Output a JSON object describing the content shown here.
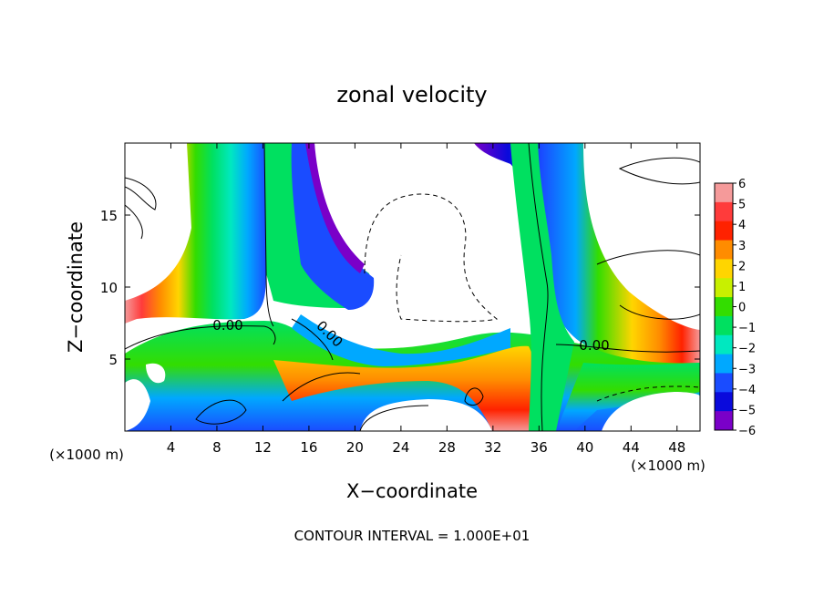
{
  "chart_data": {
    "type": "heatmap",
    "title": "zonal velocity",
    "xlabel": "X−coordinate",
    "ylabel": "Z−coordinate",
    "x_unit_left": "(×1000 m)",
    "x_unit_right": "(×1000 m)",
    "xlim": [
      0,
      50
    ],
    "ylim": [
      0,
      20
    ],
    "x_ticks": [
      4,
      8,
      12,
      16,
      20,
      24,
      28,
      32,
      36,
      40,
      44,
      48
    ],
    "y_ticks": [
      5,
      10,
      15
    ],
    "colorbar": {
      "ticks": [
        6,
        5,
        4,
        3,
        2,
        1,
        0,
        -1,
        -2,
        -3,
        -4,
        -5,
        -6
      ],
      "labels": [
        "6",
        "5",
        "4",
        "3",
        "2",
        "1",
        "0",
        "−1",
        "−2",
        "−3",
        "−4",
        "−5",
        "−6"
      ],
      "colors": [
        "#f59a9a",
        "#ff3b3b",
        "#ff2200",
        "#ff8c00",
        "#ffd500",
        "#c8f000",
        "#33dd00",
        "#00e060",
        "#00e8c0",
        "#00a8ff",
        "#1a4cff",
        "#0a0adc",
        "#7a00c8"
      ]
    },
    "contour_labels": [
      "0.00",
      "0.00",
      "0.00"
    ],
    "footer": "CONTOUR INTERVAL = 1.000E+01"
  }
}
